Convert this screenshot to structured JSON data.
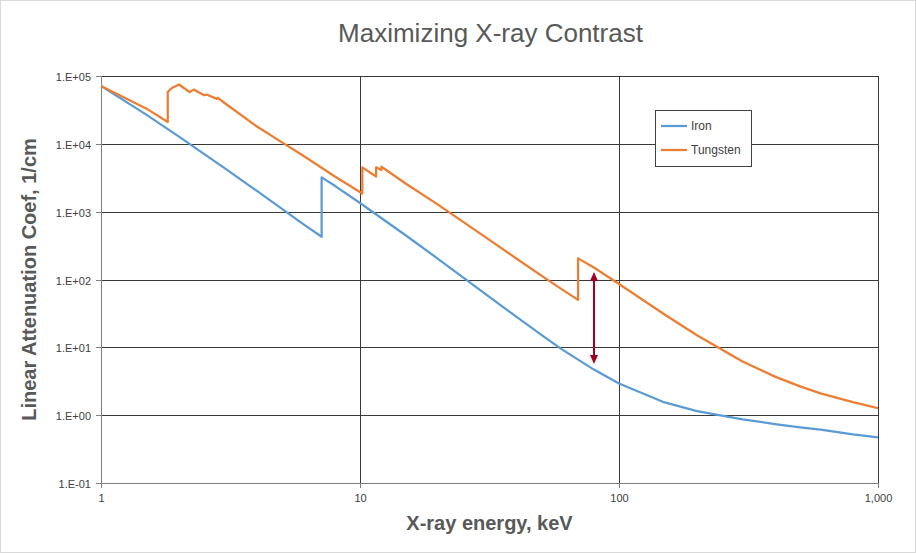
{
  "chart_data": {
    "type": "line",
    "title": "Maximizing X-ray Contrast",
    "x_label": "X-ray energy, keV",
    "y_label": "Linear Attenuation Coef, 1/cm",
    "log": true,
    "grid": true,
    "legend": "upper right",
    "xlim": [
      1,
      1000
    ],
    "xticks": [
      1,
      10,
      100,
      {
        "value": 1000,
        "label": "1,000"
      }
    ],
    "ylim": [
      0.1,
      100000
    ],
    "yticks": [
      {
        "value": 0.1,
        "label": "1.E-01"
      },
      {
        "value": 1,
        "label": "1.E+00"
      },
      {
        "value": 10,
        "label": "1.E+01"
      },
      {
        "value": 100,
        "label": "1.E+02"
      },
      {
        "value": 1000,
        "label": "1.E+03"
      },
      {
        "value": 10000,
        "label": "1.E+04"
      },
      {
        "value": 100000,
        "label": "1.E+05"
      }
    ],
    "series": [
      {
        "name": "Iron",
        "color": "#5b9bd5",
        "x": [
          1,
          1.5,
          2,
          3,
          4,
          5,
          6,
          7.11,
          7.11,
          8,
          10,
          15,
          20,
          30,
          40,
          50,
          60,
          80,
          100,
          150,
          200,
          300,
          400,
          500,
          600,
          800,
          1000
        ],
        "values": [
          71500,
          26750,
          12800,
          4390,
          2020,
          1100,
          667,
          427,
          3208,
          2405,
          1343,
          449,
          202,
          64,
          28.6,
          15.4,
          9.4,
          4.7,
          2.93,
          1.54,
          1.15,
          0.87,
          0.74,
          0.66,
          0.61,
          0.52,
          0.47
        ]
      },
      {
        "name": "Tungsten",
        "color": "#ed7d31",
        "x": [
          1,
          1.5,
          1.81,
          1.81,
          1.87,
          2.0,
          2.2,
          2.28,
          2.5,
          2.57,
          2.8,
          2.82,
          3,
          4,
          5,
          6,
          8,
          10.21,
          10.21,
          11.54,
          11.54,
          12.1,
          12.1,
          15,
          20,
          30,
          40,
          50,
          60,
          69.5,
          69.5,
          80,
          100,
          150,
          200,
          300,
          400,
          500,
          600,
          800,
          1000
        ],
        "values": [
          71000,
          33000,
          21000,
          58000,
          66000,
          75000,
          58000,
          63000,
          52000,
          53000,
          46000,
          48000,
          40000,
          18000,
          10500,
          6800,
          3300,
          1850,
          4500,
          3300,
          4500,
          4100,
          4600,
          2600,
          1270,
          440,
          206,
          115,
          72,
          50,
          205,
          150,
          86,
          30.5,
          15.1,
          6.2,
          3.7,
          2.66,
          2.1,
          1.56,
          1.27
        ]
      }
    ]
  }
}
